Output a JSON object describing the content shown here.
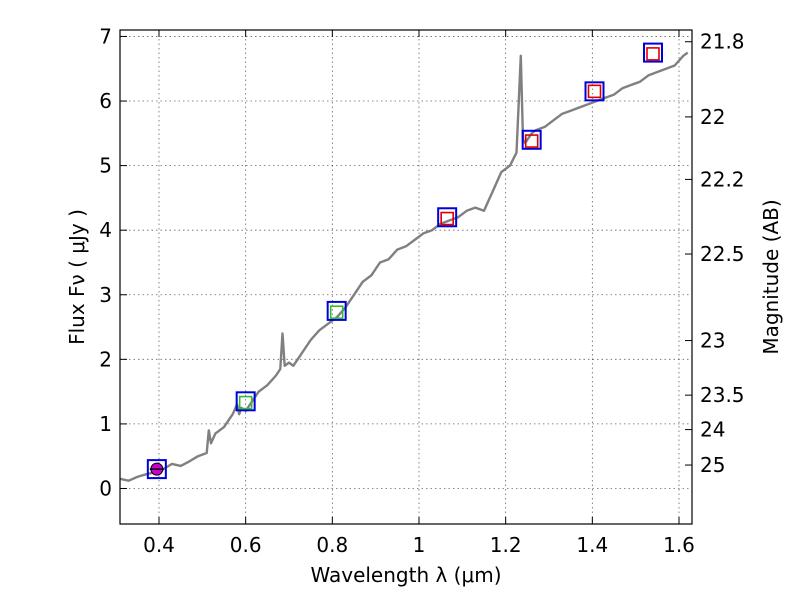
{
  "chart_data": {
    "type": "line",
    "title": "",
    "xlabel": "Wavelength  λ (μm)",
    "ylabel": "Flux  Fν  ( μJy )",
    "ylabel_right": "Magnitude (AB)",
    "xlim": [
      0.31,
      1.63
    ],
    "ylim": [
      -0.55,
      7.1
    ],
    "grid": true,
    "xticks": [
      0.4,
      0.6,
      0.8,
      1.0,
      1.2,
      1.4,
      1.6
    ],
    "xtick_labels": [
      "0.4",
      "0.6",
      "0.8",
      "1",
      "1.2",
      "1.4",
      "1.6"
    ],
    "yticks": [
      0,
      1,
      2,
      3,
      4,
      5,
      6,
      7
    ],
    "ytick_labels": [
      "0",
      "1",
      "2",
      "3",
      "4",
      "5",
      "6",
      "7"
    ],
    "mag_ticks": [
      21.8,
      22,
      22.2,
      22.5,
      23,
      23.5,
      24,
      25
    ],
    "mag_tick_labels": [
      "21.8",
      "22",
      "22.2",
      "22.5",
      "23",
      "23.5",
      "24",
      "25"
    ],
    "colors": {
      "spectrum": "#808080",
      "box": "#0000dd",
      "model_red": "#dd0000",
      "model_green": "#33bb33",
      "point_magenta": "#cc00cc"
    },
    "series": [
      {
        "name": "spectrum",
        "style": "line",
        "x": [
          0.31,
          0.33,
          0.35,
          0.37,
          0.39,
          0.41,
          0.43,
          0.45,
          0.47,
          0.49,
          0.51,
          0.515,
          0.52,
          0.53,
          0.55,
          0.57,
          0.58,
          0.585,
          0.59,
          0.6,
          0.61,
          0.63,
          0.65,
          0.67,
          0.68,
          0.685,
          0.69,
          0.7,
          0.71,
          0.73,
          0.75,
          0.77,
          0.79,
          0.81,
          0.83,
          0.85,
          0.87,
          0.89,
          0.91,
          0.93,
          0.95,
          0.97,
          0.99,
          1.01,
          1.03,
          1.05,
          1.07,
          1.09,
          1.11,
          1.13,
          1.15,
          1.17,
          1.19,
          1.21,
          1.225,
          1.235,
          1.24,
          1.245,
          1.25,
          1.26,
          1.27,
          1.29,
          1.31,
          1.33,
          1.35,
          1.37,
          1.39,
          1.41,
          1.43,
          1.45,
          1.47,
          1.49,
          1.51,
          1.53,
          1.55,
          1.57,
          1.59,
          1.61,
          1.62
        ],
        "y": [
          0.15,
          0.12,
          0.18,
          0.22,
          0.25,
          0.3,
          0.38,
          0.35,
          0.42,
          0.5,
          0.55,
          0.9,
          0.7,
          0.85,
          0.95,
          1.15,
          1.3,
          1.15,
          1.25,
          1.2,
          1.3,
          1.5,
          1.6,
          1.75,
          1.85,
          2.4,
          1.9,
          1.95,
          1.9,
          2.1,
          2.3,
          2.45,
          2.55,
          2.65,
          2.8,
          3.0,
          3.2,
          3.3,
          3.5,
          3.55,
          3.7,
          3.75,
          3.85,
          3.95,
          4.0,
          4.1,
          4.15,
          4.2,
          4.3,
          4.35,
          4.3,
          4.6,
          4.9,
          5.0,
          5.2,
          6.7,
          5.4,
          5.35,
          5.4,
          5.5,
          5.55,
          5.6,
          5.7,
          5.8,
          5.85,
          5.9,
          5.95,
          6.0,
          6.05,
          6.1,
          6.2,
          6.25,
          6.3,
          6.4,
          6.45,
          6.5,
          6.55,
          6.7,
          6.75
        ]
      },
      {
        "name": "observed bands",
        "style": "open-square",
        "x": [
          0.395,
          0.6,
          0.81,
          1.065,
          1.26,
          1.405,
          1.54
        ],
        "y": [
          0.3,
          1.35,
          2.75,
          4.2,
          5.4,
          6.15,
          6.75
        ]
      },
      {
        "name": "model red",
        "style": "small-square",
        "x": [
          1.065,
          1.26,
          1.405,
          1.54
        ],
        "y": [
          4.18,
          5.38,
          6.15,
          6.73
        ]
      },
      {
        "name": "model green",
        "style": "small-square",
        "x": [
          0.6,
          0.81
        ],
        "y": [
          1.33,
          2.73
        ]
      },
      {
        "name": "magenta point",
        "style": "filled-circle",
        "x": [
          0.395
        ],
        "y": [
          0.3
        ]
      }
    ]
  }
}
